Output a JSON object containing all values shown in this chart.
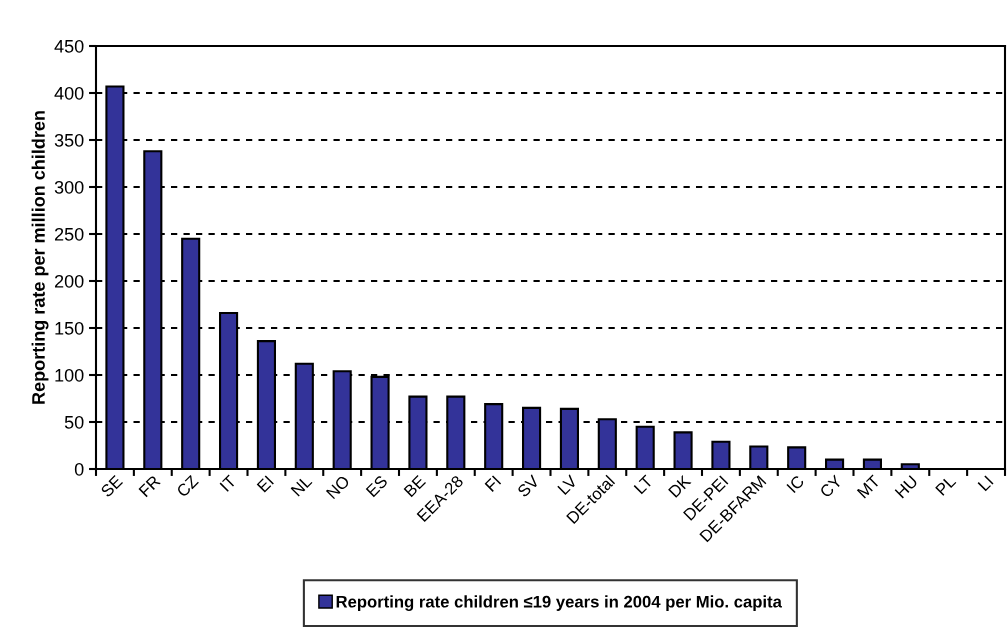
{
  "chart_data": {
    "type": "bar",
    "ylabel": "Reporting rate per million children",
    "categories": [
      "SE",
      "FR",
      "CZ",
      "IT",
      "EI",
      "NL",
      "NO",
      "ES",
      "BE",
      "EEA-28",
      "FI",
      "SV",
      "LV",
      "DE-total",
      "LT",
      "DK",
      "DE-PEI",
      "DE-BFARM",
      "IC",
      "CY",
      "MT",
      "HU",
      "PL",
      "LI"
    ],
    "series": [
      {
        "name": "Reporting rate children ≤19 years in 2004 per Mio. capita",
        "color": "#333399",
        "values": [
          407,
          338,
          245,
          166,
          136,
          112,
          104,
          98,
          77,
          77,
          69,
          65,
          64,
          53,
          45,
          39,
          29,
          24,
          23,
          10,
          10,
          5,
          0,
          0
        ]
      }
    ],
    "ylim": [
      0,
      450
    ],
    "yticks": [
      0,
      50,
      100,
      150,
      200,
      250,
      300,
      350,
      400,
      450
    ],
    "grid": "y",
    "legend": "bottom"
  }
}
